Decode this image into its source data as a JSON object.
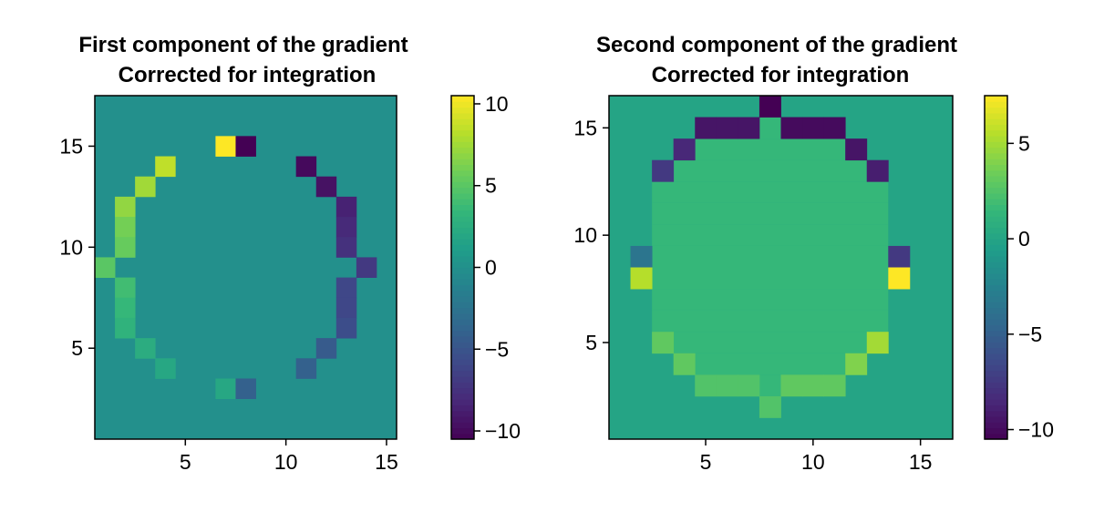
{
  "chart_data": [
    {
      "type": "heatmap",
      "title_line1": "First component of the gradient",
      "title_line2": "Corrected for integration",
      "xlabel": "",
      "ylabel": "",
      "x_range": [
        0.5,
        15.5
      ],
      "y_range": [
        0.5,
        17.5
      ],
      "x_ticks": [
        5,
        10,
        15
      ],
      "y_ticks": [
        5,
        10,
        15
      ],
      "colormap": "viridis",
      "colorbar": {
        "range": [
          -10.5,
          10.5
        ],
        "ticks": [
          10,
          5,
          0,
          -5,
          -10
        ]
      },
      "background_value": 0,
      "cells": [
        {
          "x": 7,
          "y": 15,
          "v": 10.5
        },
        {
          "x": 8,
          "y": 15,
          "v": -10.5
        },
        {
          "x": 4,
          "y": 14,
          "v": 8.5
        },
        {
          "x": 11,
          "y": 14,
          "v": -10
        },
        {
          "x": 3,
          "y": 13,
          "v": 7.5
        },
        {
          "x": 12,
          "y": 13,
          "v": -9.5
        },
        {
          "x": 2,
          "y": 12,
          "v": 7
        },
        {
          "x": 13,
          "y": 12,
          "v": -8.5
        },
        {
          "x": 2,
          "y": 11,
          "v": 6
        },
        {
          "x": 13,
          "y": 11,
          "v": -8
        },
        {
          "x": 2,
          "y": 10,
          "v": 5.5
        },
        {
          "x": 13,
          "y": 10,
          "v": -7.5
        },
        {
          "x": 1,
          "y": 9,
          "v": 5
        },
        {
          "x": 14,
          "y": 9,
          "v": -7
        },
        {
          "x": 2,
          "y": 8,
          "v": 4
        },
        {
          "x": 13,
          "y": 8,
          "v": -6
        },
        {
          "x": 2,
          "y": 7,
          "v": 3.5
        },
        {
          "x": 13,
          "y": 7,
          "v": -6
        },
        {
          "x": 2,
          "y": 6,
          "v": 3
        },
        {
          "x": 13,
          "y": 6,
          "v": -5.5
        },
        {
          "x": 3,
          "y": 5,
          "v": 2.5
        },
        {
          "x": 12,
          "y": 5,
          "v": -4.5
        },
        {
          "x": 4,
          "y": 4,
          "v": 2
        },
        {
          "x": 11,
          "y": 4,
          "v": -4
        },
        {
          "x": 7,
          "y": 3,
          "v": 2
        },
        {
          "x": 8,
          "y": 3,
          "v": -4
        }
      ]
    },
    {
      "type": "heatmap",
      "title_line1": "Second component of the gradient",
      "title_line2": "Corrected for integration",
      "xlabel": "",
      "ylabel": "",
      "x_range": [
        0.5,
        16.5
      ],
      "y_range": [
        0.5,
        16.5
      ],
      "x_ticks": [
        5,
        10,
        15
      ],
      "y_ticks": [
        5,
        10,
        15
      ],
      "colormap": "viridis",
      "colorbar": {
        "range": [
          -10.5,
          7.5
        ],
        "ticks": [
          5,
          0,
          -5,
          -10
        ]
      },
      "background_value": 0,
      "inner_region_value": 1.5,
      "cells": [
        {
          "x": 8,
          "y": 16,
          "v": -10.5
        },
        {
          "x": 5,
          "y": 15,
          "v": -9.5
        },
        {
          "x": 6,
          "y": 15,
          "v": -9.5
        },
        {
          "x": 7,
          "y": 15,
          "v": -9.5
        },
        {
          "x": 9,
          "y": 15,
          "v": -10
        },
        {
          "x": 10,
          "y": 15,
          "v": -10
        },
        {
          "x": 11,
          "y": 15,
          "v": -10
        },
        {
          "x": 4,
          "y": 14,
          "v": -8.5
        },
        {
          "x": 12,
          "y": 14,
          "v": -9.5
        },
        {
          "x": 3,
          "y": 13,
          "v": -7.5
        },
        {
          "x": 13,
          "y": 13,
          "v": -9
        },
        {
          "x": 2,
          "y": 9,
          "v": -3.5
        },
        {
          "x": 14,
          "y": 9,
          "v": -7.5
        },
        {
          "x": 2,
          "y": 8,
          "v": 5.5
        },
        {
          "x": 14,
          "y": 8,
          "v": 7.5
        },
        {
          "x": 3,
          "y": 5,
          "v": 3
        },
        {
          "x": 13,
          "y": 5,
          "v": 5
        },
        {
          "x": 4,
          "y": 4,
          "v": 3
        },
        {
          "x": 12,
          "y": 4,
          "v": 4
        },
        {
          "x": 5,
          "y": 3,
          "v": 2.5
        },
        {
          "x": 6,
          "y": 3,
          "v": 2.5
        },
        {
          "x": 7,
          "y": 3,
          "v": 2.5
        },
        {
          "x": 9,
          "y": 3,
          "v": 3
        },
        {
          "x": 10,
          "y": 3,
          "v": 3
        },
        {
          "x": 11,
          "y": 3,
          "v": 3
        },
        {
          "x": 8,
          "y": 2,
          "v": 2.5
        }
      ],
      "inner_rows": [
        {
          "y": 15,
          "x_from": 8,
          "x_to": 8
        },
        {
          "y": 14,
          "x_from": 5,
          "x_to": 11
        },
        {
          "y": 13,
          "x_from": 4,
          "x_to": 12
        },
        {
          "y": 12,
          "x_from": 3,
          "x_to": 13
        },
        {
          "y": 11,
          "x_from": 3,
          "x_to": 13
        },
        {
          "y": 10,
          "x_from": 3,
          "x_to": 13
        },
        {
          "y": 9,
          "x_from": 3,
          "x_to": 13
        },
        {
          "y": 8,
          "x_from": 3,
          "x_to": 13
        },
        {
          "y": 7,
          "x_from": 3,
          "x_to": 13
        },
        {
          "y": 6,
          "x_from": 3,
          "x_to": 13
        },
        {
          "y": 5,
          "x_from": 4,
          "x_to": 12
        },
        {
          "y": 4,
          "x_from": 5,
          "x_to": 11
        },
        {
          "y": 3,
          "x_from": 8,
          "x_to": 8
        }
      ]
    }
  ]
}
